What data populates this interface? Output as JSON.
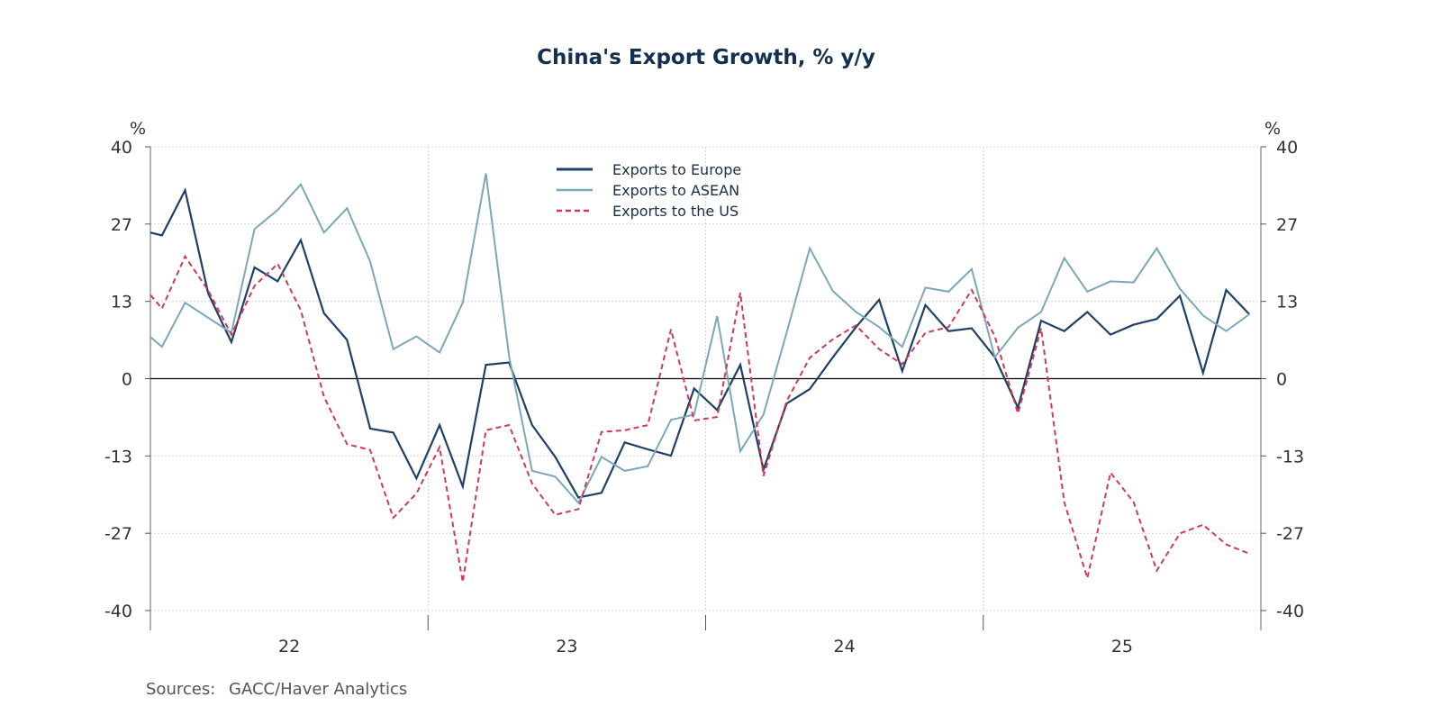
{
  "chart_data": {
    "type": "line",
    "title": "China's Export Growth, % y/y",
    "left_unit": "%",
    "right_unit": "%",
    "source_label": "Sources:",
    "source_text": "GACC/Haver Analytics",
    "ylim": [
      -40,
      40
    ],
    "yticks": [
      {
        "value": 40,
        "label": "40"
      },
      {
        "value": 26.67,
        "label": "27"
      },
      {
        "value": 13.33,
        "label": "13"
      },
      {
        "value": 0,
        "label": "0"
      },
      {
        "value": -13.33,
        "label": "-13"
      },
      {
        "value": -26.67,
        "label": "-27"
      },
      {
        "value": -40,
        "label": "-40"
      }
    ],
    "xlim": [
      "2022-01",
      "2025-12"
    ],
    "xticks": [
      "22",
      "23",
      "24",
      "25"
    ],
    "grid": true,
    "legend_position": "top-center",
    "x": [
      "2021-12",
      "2022-01",
      "2022-02",
      "2022-03",
      "2022-04",
      "2022-05",
      "2022-06",
      "2022-07",
      "2022-08",
      "2022-09",
      "2022-10",
      "2022-11",
      "2022-12",
      "2023-01",
      "2023-02",
      "2023-03",
      "2023-04",
      "2023-05",
      "2023-06",
      "2023-07",
      "2023-08",
      "2023-09",
      "2023-10",
      "2023-11",
      "2023-12",
      "2024-01",
      "2024-02",
      "2024-03",
      "2024-04",
      "2024-05",
      "2024-06",
      "2024-07",
      "2024-08",
      "2024-09",
      "2024-10",
      "2024-11",
      "2024-12",
      "2025-01",
      "2025-02",
      "2025-03",
      "2025-04",
      "2025-05",
      "2025-06",
      "2025-07",
      "2025-08",
      "2025-09",
      "2025-10",
      "2025-11",
      "2025-12"
    ],
    "series": [
      {
        "name": "Exports to Europe",
        "color": "#1e3f66",
        "style": "solid",
        "values": [
          25.7,
          24.7,
          32.5,
          14.7,
          6.3,
          19.2,
          16.8,
          23.9,
          11.3,
          6.7,
          -8.6,
          -9.3,
          -17.2,
          -8.0,
          -18.6,
          2.4,
          2.8,
          -8.0,
          -13.5,
          -20.5,
          -19.7,
          -11.0,
          -12.2,
          -13.3,
          -1.7,
          -5.4,
          2.4,
          -15.7,
          -4.3,
          -1.8,
          3.7,
          8.9,
          13.6,
          1.3,
          12.7,
          8.2,
          8.7,
          3.7,
          -5.0,
          10.0,
          8.2,
          11.5,
          7.6,
          9.3,
          10.3,
          14.3,
          1.0,
          15.3,
          11.1
        ]
      },
      {
        "name": "Exports to ASEAN",
        "color": "#7ba8b8",
        "style": "solid",
        "values": [
          8.9,
          5.5,
          13.1,
          10.5,
          7.9,
          25.8,
          29.1,
          33.5,
          25.2,
          29.4,
          20.2,
          5.1,
          7.3,
          4.5,
          13.1,
          35.4,
          3.9,
          -15.9,
          -16.9,
          -21.4,
          -13.5,
          -15.9,
          -15.1,
          -7.1,
          -6.2,
          10.8,
          -12.5,
          -6.2,
          7.9,
          22.5,
          15.1,
          11.5,
          8.9,
          5.5,
          15.7,
          15.0,
          18.9,
          3.7,
          8.8,
          11.5,
          20.8,
          15.0,
          16.8,
          16.6,
          22.5,
          15.5,
          10.9,
          8.2,
          11.1
        ]
      },
      {
        "name": "Exports to the US",
        "color": "#d0395a",
        "style": "dashed",
        "values": [
          16.8,
          12.1,
          21.1,
          15.2,
          7.6,
          16.0,
          19.8,
          11.8,
          -3.1,
          -11.3,
          -12.3,
          -24.0,
          -19.8,
          -11.8,
          -35.1,
          -8.9,
          -8.0,
          -18.1,
          -23.5,
          -22.5,
          -9.2,
          -8.9,
          -8.0,
          8.5,
          -7.2,
          -6.6,
          14.8,
          -16.8,
          -3.9,
          3.6,
          6.8,
          9.2,
          5.1,
          2.5,
          7.9,
          8.9,
          15.3,
          7.3,
          -6.0,
          8.7,
          -21.3,
          -34.4,
          -16.2,
          -21.3,
          -33.1,
          -26.7,
          -25.2,
          -28.6,
          -30.2
        ]
      }
    ]
  }
}
